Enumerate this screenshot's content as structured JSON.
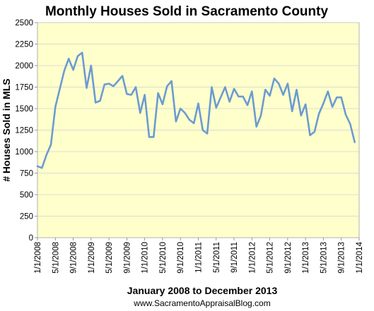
{
  "chart_data": {
    "type": "line",
    "title": "Monthly Houses Sold in Sacramento County",
    "xlabel": "January 2008 to December 2013",
    "ylabel": "# Houses Sold in MLS",
    "footer": "www.SacramentoAppraisalBlog.com",
    "ylim": [
      0,
      2500
    ],
    "yticks": [
      "0",
      "250",
      "500",
      "750",
      "1000",
      "1250",
      "1500",
      "1750",
      "2000",
      "2250",
      "2500"
    ],
    "xticks": [
      "1/1/2008",
      "5/1/2008",
      "9/1/2008",
      "1/1/2009",
      "5/1/2009",
      "9/1/2009",
      "1/1/2010",
      "5/1/2010",
      "9/1/2010",
      "1/1/2011",
      "5/1/2011",
      "9/1/2011",
      "1/1/2012",
      "5/1/2012",
      "9/1/2012",
      "1/1/2013",
      "5/1/2013",
      "9/1/2013",
      "1/1/2014"
    ],
    "grid": true,
    "colors": {
      "plot_bg": "#ffffcc",
      "line": "#6b9bd1",
      "grid": "#d0d0d0"
    },
    "series": [
      {
        "x": [
          "2008-01",
          "2008-02",
          "2008-03",
          "2008-04",
          "2008-05",
          "2008-06",
          "2008-07",
          "2008-08",
          "2008-09",
          "2008-10",
          "2008-11",
          "2008-12",
          "2009-01",
          "2009-02",
          "2009-03",
          "2009-04",
          "2009-05",
          "2009-06",
          "2009-07",
          "2009-08",
          "2009-09",
          "2009-10",
          "2009-11",
          "2009-12",
          "2010-01",
          "2010-02",
          "2010-03",
          "2010-04",
          "2010-05",
          "2010-06",
          "2010-07",
          "2010-08",
          "2010-09",
          "2010-10",
          "2010-11",
          "2010-12",
          "2011-01",
          "2011-02",
          "2011-03",
          "2011-04",
          "2011-05",
          "2011-06",
          "2011-07",
          "2011-08",
          "2011-09",
          "2011-10",
          "2011-11",
          "2011-12",
          "2012-01",
          "2012-02",
          "2012-03",
          "2012-04",
          "2012-05",
          "2012-06",
          "2012-07",
          "2012-08",
          "2012-09",
          "2012-10",
          "2012-11",
          "2012-12",
          "2013-01",
          "2013-02",
          "2013-03",
          "2013-04",
          "2013-05",
          "2013-06",
          "2013-07",
          "2013-08",
          "2013-09",
          "2013-10",
          "2013-11",
          "2013-12"
        ],
        "values": [
          830,
          810,
          960,
          1080,
          1520,
          1730,
          1940,
          2080,
          1950,
          2110,
          2150,
          1740,
          2000,
          1570,
          1590,
          1780,
          1790,
          1760,
          1820,
          1880,
          1670,
          1660,
          1750,
          1450,
          1660,
          1170,
          1170,
          1680,
          1550,
          1760,
          1820,
          1350,
          1500,
          1450,
          1370,
          1330,
          1560,
          1250,
          1210,
          1750,
          1510,
          1630,
          1750,
          1580,
          1730,
          1640,
          1640,
          1540,
          1700,
          1290,
          1420,
          1720,
          1650,
          1850,
          1790,
          1660,
          1790,
          1470,
          1720,
          1420,
          1550,
          1190,
          1230,
          1440,
          1560,
          1700,
          1520,
          1630,
          1630,
          1430,
          1320,
          1110
        ]
      }
    ]
  }
}
